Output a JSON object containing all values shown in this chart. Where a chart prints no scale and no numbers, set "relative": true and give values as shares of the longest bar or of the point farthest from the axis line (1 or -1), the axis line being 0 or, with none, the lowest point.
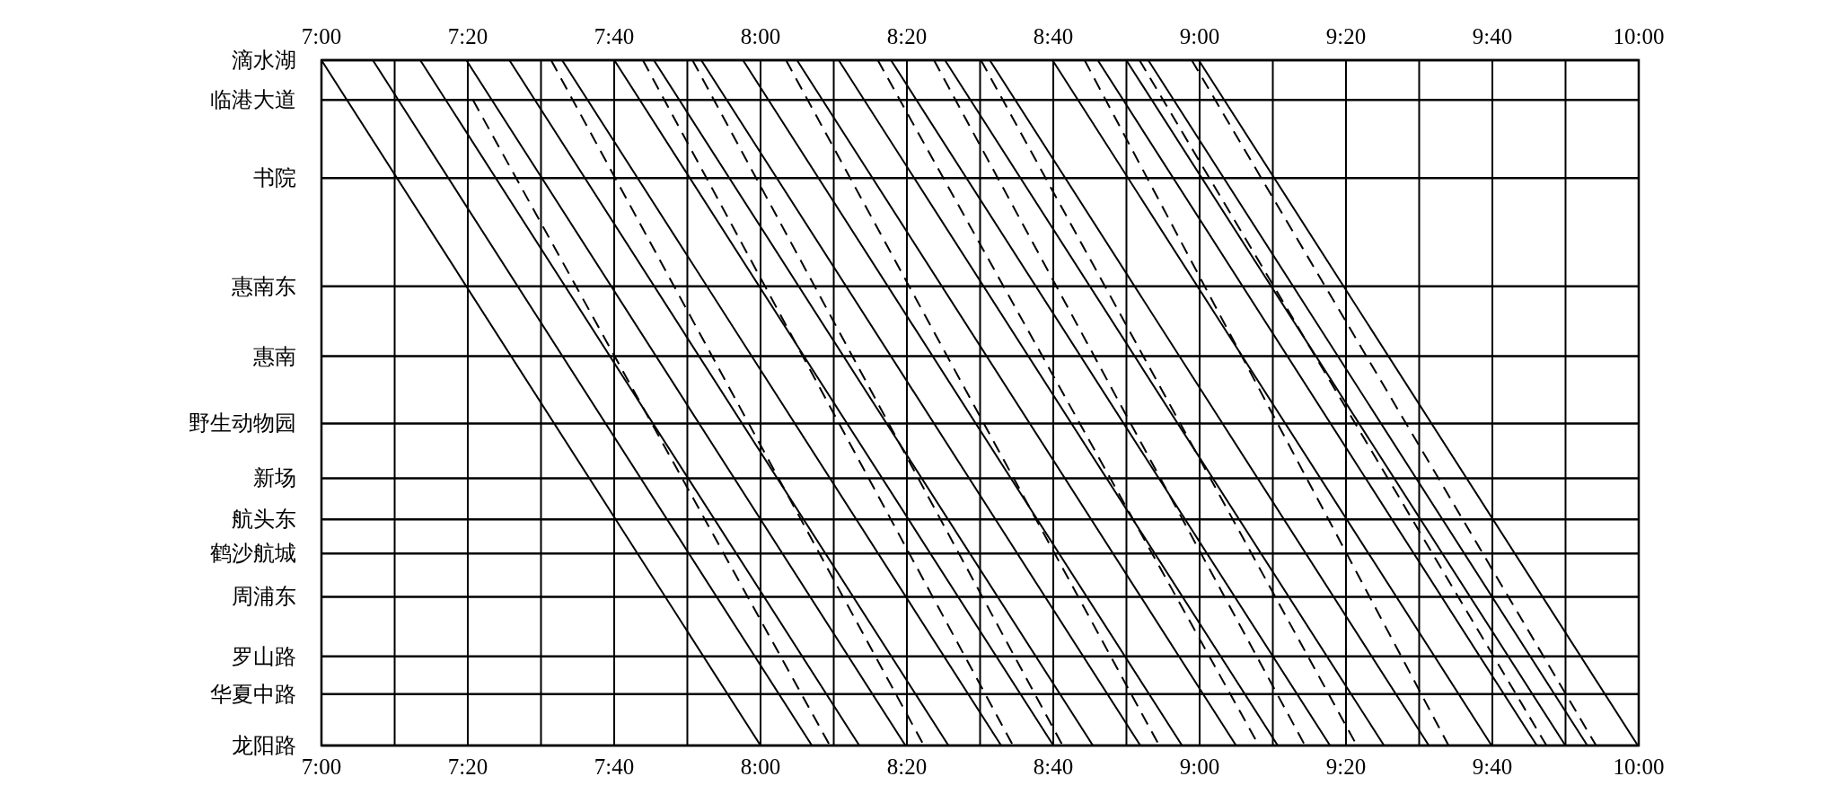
{
  "chart_data": {
    "type": "line",
    "color": "#000000",
    "grid": "x",
    "relative": true,
    "marker": "none",
    "xlim": [
      7,
      10
    ],
    "x2lim": [
      7,
      10
    ],
    "xticks": [
      {
        "value": 7,
        "label": "7:00"
      },
      {
        "value": 7.1667,
        "label": null
      },
      {
        "value": 7.3333,
        "label": "7:20"
      },
      {
        "value": 7.5,
        "label": null
      },
      {
        "value": 7.6667,
        "label": "7:40"
      },
      {
        "value": 7.8333,
        "label": null
      },
      {
        "value": 8,
        "label": "8:00"
      },
      {
        "value": 8.1667,
        "label": null
      },
      {
        "value": 8.3333,
        "label": "8:20"
      },
      {
        "value": 8.5,
        "label": null
      },
      {
        "value": 8.6667,
        "label": "8:40"
      },
      {
        "value": 8.8333,
        "label": null
      },
      {
        "value": 9,
        "label": "9:00"
      },
      {
        "value": 9.1667,
        "label": null
      },
      {
        "value": 9.3333,
        "label": "9:20"
      },
      {
        "value": 9.5,
        "label": null
      },
      {
        "value": 9.6667,
        "label": "9:40"
      },
      {
        "value": 9.8333,
        "label": null
      },
      {
        "value": 10,
        "label": "10:00"
      }
    ],
    "x2ticks": [
      {
        "value": 7,
        "label": "7:00"
      },
      {
        "value": 7.3333,
        "label": "7:20"
      },
      {
        "value": 7.6667,
        "label": "7:40"
      },
      {
        "value": 8,
        "label": "8:00"
      },
      {
        "value": 8.3333,
        "label": "8:20"
      },
      {
        "value": 8.6667,
        "label": "8:40"
      },
      {
        "value": 9,
        "label": "9:00"
      },
      {
        "value": 9.3333,
        "label": "9:20"
      },
      {
        "value": 9.6667,
        "label": "9:40"
      },
      {
        "value": 10,
        "label": "10:00"
      }
    ],
    "ref_lines": [
      {
        "axis": "y",
        "value": 1,
        "label": "滴水湖"
      },
      {
        "axis": "y",
        "value": 0.942,
        "label": "临港大道"
      },
      {
        "axis": "y",
        "value": 0.828,
        "label": "书院"
      },
      {
        "axis": "y",
        "value": 0.67,
        "label": "惠南东"
      },
      {
        "axis": "y",
        "value": 0.568,
        "label": "惠南"
      },
      {
        "axis": "y",
        "value": 0.47,
        "label": "野生动物园"
      },
      {
        "axis": "y",
        "value": 0.39,
        "label": "新场"
      },
      {
        "axis": "y",
        "value": 0.33,
        "label": "航头东"
      },
      {
        "axis": "y",
        "value": 0.28,
        "label": "鹤沙航城"
      },
      {
        "axis": "y",
        "value": 0.217,
        "label": "周浦东"
      },
      {
        "axis": "y",
        "value": 0.13,
        "label": "罗山路"
      },
      {
        "axis": "y",
        "value": 0.075,
        "label": "华夏中路"
      },
      {
        "axis": "y",
        "value": 0,
        "label": "龙阳路"
      }
    ],
    "series": [
      {
        "line_style": "solid",
        "x": [
          7.0,
          8.0
        ],
        "values": [
          1,
          0
        ]
      },
      {
        "line_style": "solid",
        "x": [
          7.117,
          8.117
        ],
        "values": [
          1,
          0
        ]
      },
      {
        "line_style": "solid",
        "x": [
          7.225,
          8.225
        ],
        "values": [
          1,
          0
        ]
      },
      {
        "line_style": "solid",
        "x": [
          7.33,
          8.33
        ],
        "values": [
          1,
          0
        ]
      },
      {
        "line_style": "solid",
        "x": [
          7.428,
          8.428
        ],
        "values": [
          1,
          0
        ]
      },
      {
        "line_style": "solid",
        "x": [
          7.548,
          8.548
        ],
        "values": [
          1,
          0
        ]
      },
      {
        "line_style": "solid",
        "x": [
          7.667,
          8.667
        ],
        "values": [
          1,
          0
        ]
      },
      {
        "line_style": "solid",
        "x": [
          7.757,
          8.757
        ],
        "values": [
          1,
          0
        ]
      },
      {
        "line_style": "solid",
        "x": [
          7.865,
          8.865
        ],
        "values": [
          1,
          0
        ]
      },
      {
        "line_style": "solid",
        "x": [
          7.96,
          8.96
        ],
        "values": [
          1,
          0
        ]
      },
      {
        "line_style": "solid",
        "x": [
          8.083,
          9.083
        ],
        "values": [
          1,
          0
        ]
      },
      {
        "line_style": "solid",
        "x": [
          8.178,
          9.178
        ],
        "values": [
          1,
          0
        ]
      },
      {
        "line_style": "solid",
        "x": [
          8.297,
          9.297
        ],
        "values": [
          1,
          0
        ]
      },
      {
        "line_style": "solid",
        "x": [
          8.42,
          9.42
        ],
        "values": [
          1,
          0
        ]
      },
      {
        "line_style": "solid",
        "x": [
          8.522,
          9.522
        ],
        "values": [
          1,
          0
        ]
      },
      {
        "line_style": "solid",
        "x": [
          8.665,
          9.665
        ],
        "values": [
          1,
          0
        ]
      },
      {
        "line_style": "solid",
        "x": [
          8.768,
          9.768
        ],
        "values": [
          1,
          0
        ]
      },
      {
        "line_style": "solid",
        "x": [
          8.833,
          9.833
        ],
        "values": [
          1,
          0
        ]
      },
      {
        "line_style": "solid",
        "x": [
          8.883,
          9.883
        ],
        "values": [
          1,
          0
        ]
      },
      {
        "line_style": "solid",
        "x": [
          8.998,
          9.998
        ],
        "values": [
          1,
          0
        ]
      },
      {
        "line_style": "dashed",
        "x": [
          7.345,
          8.158
        ],
        "values": [
          0.942,
          0
        ]
      },
      {
        "line_style": "dashed",
        "x": [
          7.523,
          8.372
        ],
        "values": [
          1,
          0
        ]
      },
      {
        "line_style": "dashed",
        "x": [
          7.732,
          8.575
        ],
        "values": [
          1,
          0
        ]
      },
      {
        "line_style": "dashed",
        "x": [
          7.845,
          8.688
        ],
        "values": [
          1,
          0
        ]
      },
      {
        "line_style": "dashed",
        "x": [
          8.058,
          8.908
        ],
        "values": [
          1,
          0
        ]
      },
      {
        "line_style": "dashed",
        "x": [
          8.267,
          9.135
        ],
        "values": [
          1,
          0
        ]
      },
      {
        "line_style": "dashed",
        "x": [
          8.395,
          9.24
        ],
        "values": [
          1,
          0
        ]
      },
      {
        "line_style": "dashed",
        "x": [
          8.502,
          9.358
        ],
        "values": [
          1,
          0
        ]
      },
      {
        "line_style": "dashed",
        "x": [
          8.738,
          9.567
        ],
        "values": [
          1,
          0
        ]
      },
      {
        "line_style": "dashed",
        "x": [
          8.863,
          9.79
        ],
        "values": [
          1,
          0
        ]
      },
      {
        "line_style": "dashed",
        "x": [
          8.982,
          9.903
        ],
        "values": [
          1,
          0
        ]
      }
    ]
  }
}
